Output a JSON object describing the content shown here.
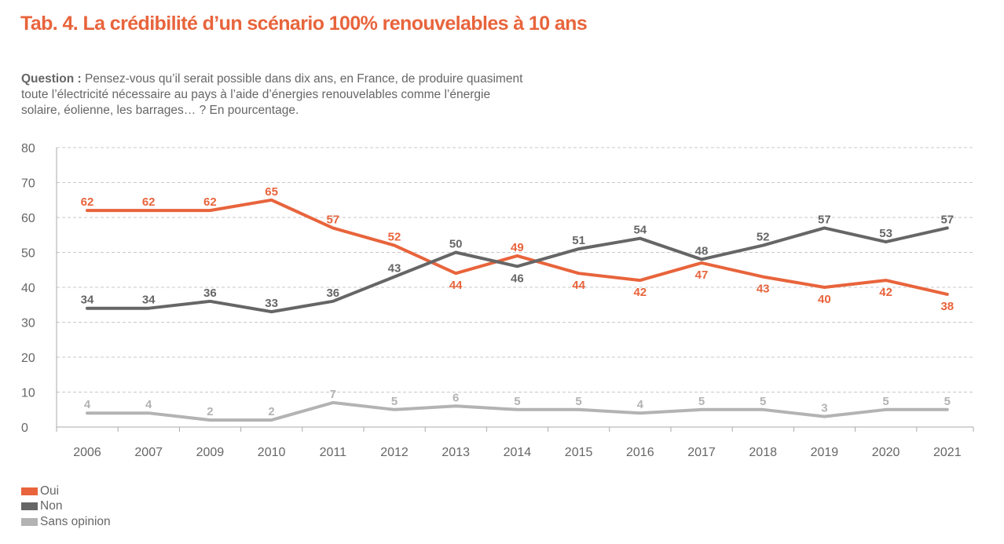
{
  "title": "Tab. 4. La crédibilité d’un scénario 100% renouvelables à 10 ans",
  "question": {
    "label": "Question :",
    "text": " Pensez-vous qu’il serait possible dans dix ans, en France, de produire quasiment toute l’électricité nécessaire au pays à l’aide d’énergies renouvelables comme l’énergie solaire, éolienne, les barrages… ? En pourcentage."
  },
  "chart_data": {
    "type": "line",
    "x": [
      "2006",
      "2007",
      "2009",
      "2010",
      "2011",
      "2012",
      "2013",
      "2014",
      "2015",
      "2016",
      "2017",
      "2018",
      "2019",
      "2020",
      "2021"
    ],
    "ylim": [
      0,
      80
    ],
    "yticks": [
      0,
      10,
      20,
      30,
      40,
      50,
      60,
      70,
      80
    ],
    "grid": true,
    "legend_position": "bottom-left",
    "series": [
      {
        "name": "Oui",
        "color": "#e8643c",
        "values": [
          62,
          62,
          62,
          65,
          57,
          52,
          44,
          49,
          44,
          42,
          47,
          43,
          40,
          42,
          38
        ],
        "label_side": [
          "above",
          "above",
          "above",
          "above",
          "above",
          "above",
          "below",
          "above",
          "below",
          "below",
          "below",
          "below",
          "below",
          "below",
          "below"
        ]
      },
      {
        "name": "Non",
        "color": "#666666",
        "values": [
          34,
          34,
          36,
          33,
          36,
          43,
          50,
          46,
          51,
          54,
          48,
          52,
          57,
          53,
          57
        ],
        "label_side": [
          "above",
          "above",
          "above",
          "above",
          "above",
          "above",
          "above",
          "below",
          "above",
          "above",
          "above",
          "above",
          "above",
          "above",
          "above"
        ]
      },
      {
        "name": "Sans opinion",
        "color": "#b3b3b3",
        "values": [
          4,
          4,
          2,
          2,
          7,
          5,
          6,
          5,
          5,
          4,
          5,
          5,
          3,
          5,
          5
        ],
        "label_side": [
          "above",
          "above",
          "above",
          "above",
          "above",
          "above",
          "above",
          "above",
          "above",
          "above",
          "above",
          "above",
          "above",
          "above",
          "above"
        ]
      }
    ]
  }
}
